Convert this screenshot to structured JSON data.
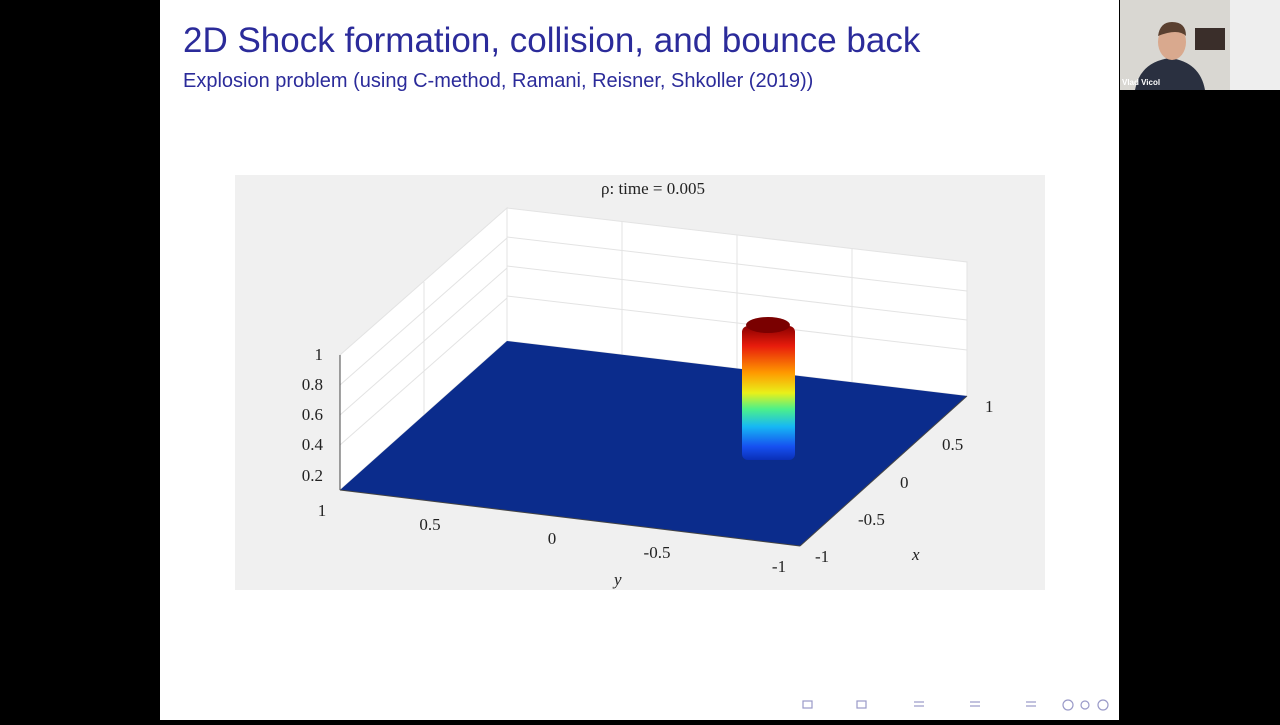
{
  "slide": {
    "title": "2D Shock formation, collision, and bounce back",
    "subtitle": "Explosion problem (using C-method, Ramani, Reisner, Shkoller (2019))"
  },
  "figure": {
    "title": "ρ:  time = 0.005",
    "z_ticks": [
      "1",
      "0.8",
      "0.6",
      "0.4",
      "0.2"
    ],
    "y_ticks": [
      "1",
      "0.5",
      "0",
      "-0.5",
      "-1"
    ],
    "x_ticks": [
      "1",
      "0.5",
      "0",
      "-0.5",
      "-1"
    ],
    "x_label": "x",
    "y_label": "y"
  },
  "participant": {
    "name": "Vlad Vicol"
  }
}
